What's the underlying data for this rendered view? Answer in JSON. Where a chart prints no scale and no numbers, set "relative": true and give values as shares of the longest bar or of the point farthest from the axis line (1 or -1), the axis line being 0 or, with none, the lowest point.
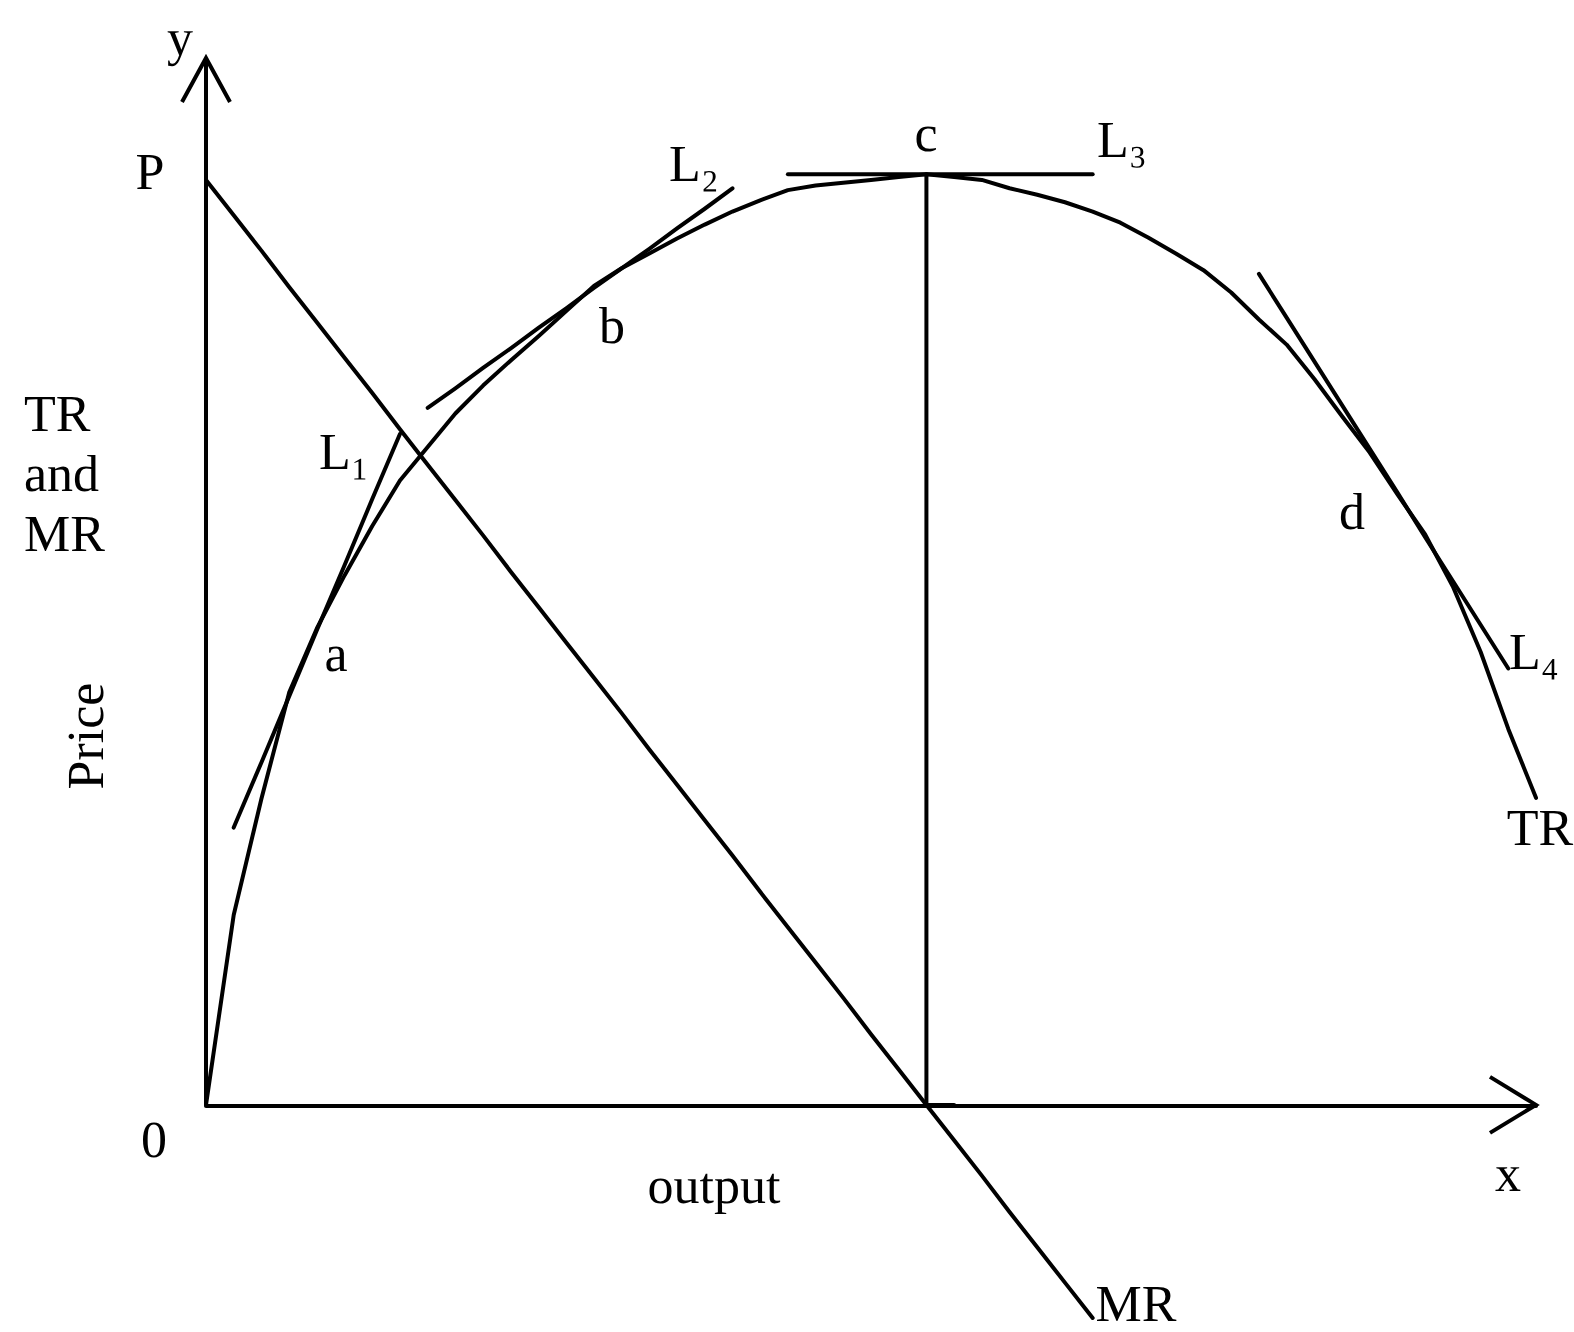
{
  "chart_data": {
    "type": "line",
    "relative": true,
    "marker": "none",
    "tick_labels": false,
    "xlabel": "output",
    "ylabel": "Price",
    "annotations": [
      "y",
      "x",
      "P",
      "0",
      "TR and MR",
      "a",
      "b",
      "c",
      "d"
    ],
    "categories": [
      null,
      null,
      null,
      null,
      null,
      null,
      null,
      null,
      null,
      null,
      null,
      null,
      null,
      null,
      null,
      null,
      null,
      null,
      null,
      null,
      null,
      null,
      null,
      null,
      null,
      null,
      null,
      null,
      null,
      null,
      null,
      null,
      null,
      null,
      null,
      null,
      null,
      null,
      null,
      null,
      null,
      null,
      null,
      null,
      null,
      null,
      null,
      null,
      null
    ],
    "series": [
      {
        "name": "TR",
        "color": "#000000",
        "values": [
          0,
          0.204,
          0.329,
          0.443,
          0.512,
          0.569,
          0.622,
          0.671,
          0.707,
          0.743,
          0.773,
          0.8,
          0.826,
          0.853,
          0.88,
          0.899,
          0.915,
          0.931,
          0.946,
          0.96,
          0.972,
          0.983,
          0.988,
          0.991,
          0.994,
          0.997,
          1,
          0.997,
          0.994,
          0.985,
          0.978,
          0.97,
          0.96,
          0.948,
          0.932,
          0.915,
          0.897,
          0.873,
          0.844,
          0.817,
          0.78,
          0.74,
          0.701,
          0.656,
          0.613,
          0.557,
          0.487,
          0.404,
          0.33
        ]
      },
      {
        "name": "MR",
        "color": "#000000",
        "values": [
          0.994,
          0.956,
          0.918,
          0.879,
          0.841,
          0.803,
          0.765,
          0.726,
          0.688,
          0.65,
          0.612,
          0.573,
          0.535,
          0.497,
          0.459,
          0.421,
          0.382,
          0.344,
          0.306,
          0.268,
          0.229,
          0.191,
          0.153,
          0.115,
          0.076,
          0.038,
          0,
          -0.038,
          -0.076,
          -0.115,
          -0.153,
          -0.191,
          -0.229,
          null,
          null,
          null,
          null,
          null,
          null,
          null,
          null,
          null,
          null,
          null,
          null,
          null,
          null,
          null,
          null
        ]
      },
      {
        "name": "L₁",
        "color": "#000000",
        "values": [
          null,
          0.298,
          0.368,
          0.439,
          0.51,
          0.58,
          0.651,
          0.721,
          null,
          null,
          null,
          null,
          null,
          null,
          null,
          null,
          null,
          null,
          null,
          null,
          null,
          null,
          null,
          null,
          null,
          null,
          null,
          null,
          null,
          null,
          null,
          null,
          null,
          null,
          null,
          null,
          null,
          null,
          null,
          null,
          null,
          null,
          null,
          null,
          null,
          null,
          null,
          null,
          null
        ]
      },
      {
        "name": "L₂",
        "color": "#000000",
        "values": [
          null,
          null,
          null,
          null,
          null,
          null,
          null,
          null,
          0.749,
          0.77,
          0.792,
          0.813,
          0.835,
          0.856,
          0.878,
          0.899,
          0.92,
          0.942,
          0.963,
          0.985,
          null,
          null,
          null,
          null,
          null,
          null,
          null,
          null,
          null,
          null,
          null,
          null,
          null,
          null,
          null,
          null,
          null,
          null,
          null,
          null,
          null,
          null,
          null,
          null,
          null,
          null,
          null,
          null,
          null
        ]
      },
      {
        "name": "L₃",
        "color": "#000000",
        "values": [
          null,
          null,
          null,
          null,
          null,
          null,
          null,
          null,
          null,
          null,
          null,
          null,
          null,
          null,
          null,
          null,
          null,
          null,
          null,
          null,
          null,
          1,
          1,
          1,
          1,
          1,
          1,
          1,
          1,
          1,
          1,
          1,
          1,
          null,
          null,
          null,
          null,
          null,
          null,
          null,
          null,
          null,
          null,
          null,
          null,
          null,
          null,
          null,
          null
        ]
      },
      {
        "name": "L₄",
        "color": "#000000",
        "values": [
          null,
          null,
          null,
          null,
          null,
          null,
          null,
          null,
          null,
          null,
          null,
          null,
          null,
          null,
          null,
          null,
          null,
          null,
          null,
          null,
          null,
          null,
          null,
          null,
          null,
          null,
          null,
          null,
          null,
          null,
          null,
          null,
          null,
          null,
          null,
          null,
          null,
          null,
          0.893,
          0.846,
          0.799,
          0.752,
          0.705,
          0.658,
          0.61,
          0.563,
          0.516,
          0.469,
          null
        ]
      },
      {
        "type": "step",
        "color": "#000000",
        "values": [
          null,
          null,
          null,
          null,
          null,
          null,
          null,
          null,
          null,
          null,
          null,
          null,
          null,
          null,
          null,
          null,
          null,
          null,
          null,
          null,
          null,
          null,
          null,
          null,
          null,
          null,
          1,
          0,
          null,
          null,
          null,
          null,
          null,
          null,
          null,
          null,
          null,
          null,
          null,
          null,
          null,
          null,
          null,
          null,
          null,
          null,
          null,
          null,
          null
        ]
      }
    ]
  }
}
